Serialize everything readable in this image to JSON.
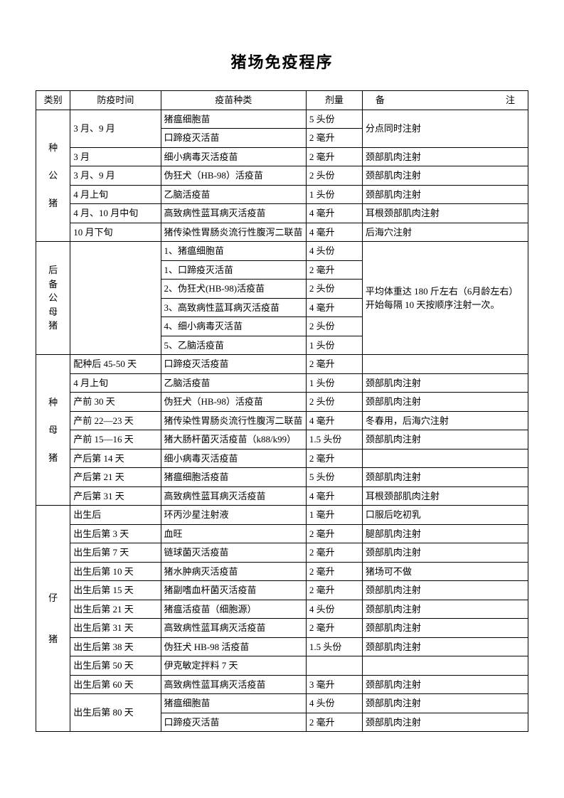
{
  "title": "猪场免疫程序",
  "headers": {
    "category": "类别",
    "time": "防疫时间",
    "vaccine": "疫苗种类",
    "dose": "剂量",
    "note": "备　　注"
  },
  "cat1": "种　公　猪",
  "g1": {
    "r1": {
      "time": "3 月、9 月",
      "vac": "猪瘟细胞苗",
      "dose": "5 头份",
      "note": "分点同时注射"
    },
    "r2": {
      "vac": "口蹄疫灭活苗",
      "dose": "2 毫升"
    },
    "r3": {
      "time": "3 月",
      "vac": "细小病毒灭活疫苗",
      "dose": "2 毫升",
      "note": "颈部肌肉注射"
    },
    "r4": {
      "time": "3 月、9 月",
      "vac": "伪狂犬（HB-98）活疫苗",
      "dose": "2 头份",
      "note": "颈部肌肉注射"
    },
    "r5": {
      "time": "4 月上旬",
      "vac": "乙脑活疫苗",
      "dose": "1 头份",
      "note": "颈部肌肉注射"
    },
    "r6": {
      "time": "4 月、10 月中旬",
      "vac": "高致病性蓝耳病灭活疫苗",
      "dose": "4 毫升",
      "note": "耳根颈部肌肉注射"
    },
    "r7": {
      "time": "10 月下旬",
      "vac": "猪传染性胃肠炎流行性腹泻二联苗",
      "dose": "4 毫升",
      "note": "后海穴注射"
    }
  },
  "cat2": "后备公母猪",
  "g2": {
    "note": "平均体重达 180 斤左右（6月龄左右）开始每隔 10 天按顺序注射一次。",
    "r1": {
      "vac": "1、猪瘟细胞苗",
      "dose": "4 头份"
    },
    "r2": {
      "vac": "1、口蹄疫灭活苗",
      "dose": "2 毫升"
    },
    "r3": {
      "vac": "2、伪狂犬(HB-98)活疫苗",
      "dose": "2 头份"
    },
    "r4": {
      "vac": "3、高致病性蓝耳病灭活疫苗",
      "dose": "4 毫升"
    },
    "r5": {
      "vac": "4、细小病毒灭活苗",
      "dose": "2 头份"
    },
    "r6": {
      "vac": "5、乙脑活疫苗",
      "dose": "1 头份"
    }
  },
  "cat3": "种　母　猪",
  "g3": {
    "r1": {
      "time": "配种后 45-50 天",
      "vac": "口蹄疫灭活疫苗",
      "dose": "2 毫升",
      "note": ""
    },
    "r2": {
      "time": "4 月上旬",
      "vac": "乙脑活疫苗",
      "dose": "1 头份",
      "note": "颈部肌肉注射"
    },
    "r3": {
      "time": "产前 30 天",
      "vac": "伪狂犬（HB-98）活疫苗",
      "dose": "2 头份",
      "note": "颈部肌肉注射"
    },
    "r4": {
      "time": "产前 22—23 天",
      "vac": "猪传染性胃肠炎流行性腹泻二联苗",
      "dose": "4 毫升",
      "note": "冬春用，后海穴注射"
    },
    "r5": {
      "time": "产前 15—16 天",
      "vac": "猪大肠杆菌灭活疫苗（k88/k99）",
      "dose": "1.5 头份",
      "note": "颈部肌肉注射"
    },
    "r6": {
      "time": "产后第 14 天",
      "vac": "细小病毒灭活疫苗",
      "dose": "2 毫升",
      "note": ""
    },
    "r7": {
      "time": "产后第 21 天",
      "vac": "猪瘟细胞活疫苗",
      "dose": "5 头份",
      "note": "颈部肌肉注射"
    },
    "r8": {
      "time": "产后第 31 天",
      "vac": "高致病性蓝耳病灭活疫苗",
      "dose": "4 毫升",
      "note": "耳根颈部肌肉注射"
    }
  },
  "cat4": "仔　　猪",
  "g4": {
    "r1": {
      "time": "出生后",
      "vac": "环丙沙星注射液",
      "dose": "1 毫升",
      "note": "口服后吃初乳"
    },
    "r2": {
      "time": "出生后第 3 天",
      "vac": "血旺",
      "dose": "2 毫升",
      "note": "腿部肌肉注射"
    },
    "r3": {
      "time": "出生后第 7 天",
      "vac": "链球菌灭活疫苗",
      "dose": "2 毫升",
      "note": "颈部肌肉注射"
    },
    "r4": {
      "time": "出生后第 10 天",
      "vac": "猪水肿病灭活疫苗",
      "dose": "2 毫升",
      "note": "猪场可不做"
    },
    "r5": {
      "time": "出生后第 15 天",
      "vac": "猪副嗜血杆菌灭活疫苗",
      "dose": "2 毫升",
      "note": "颈部肌肉注射"
    },
    "r6": {
      "time": "出生后第 21 天",
      "vac": "猪瘟活疫苗（细胞源）",
      "dose": "4 头份",
      "note": "颈部肌肉注射"
    },
    "r7": {
      "time": "出生后第 31 天",
      "vac": "高致病性蓝耳病灭活疫苗",
      "dose": "2 毫升",
      "note": "颈部肌肉注射"
    },
    "r8": {
      "time": "出生后第 38 天",
      "vac": "伪狂犬 HB-98 活疫苗",
      "dose": "1.5 头份",
      "note": "颈部肌肉注射"
    },
    "r9": {
      "time": "出生后第 50 天",
      "vac": "伊克敏定拌料 7 天",
      "dose": "",
      "note": ""
    },
    "r10": {
      "time": "出生后第 60 天",
      "vac": "高致病性蓝耳病灭活疫苗",
      "dose": "3 毫升",
      "note": "颈部肌肉注射"
    },
    "r11": {
      "time": "出生后第 80 天",
      "vac": "猪瘟细胞苗",
      "dose": "4 头份",
      "note": "颈部肌肉注射"
    },
    "r12": {
      "vac": "口蹄疫灭活苗",
      "dose": "2 毫升",
      "note": "颈部肌肉注射"
    }
  }
}
